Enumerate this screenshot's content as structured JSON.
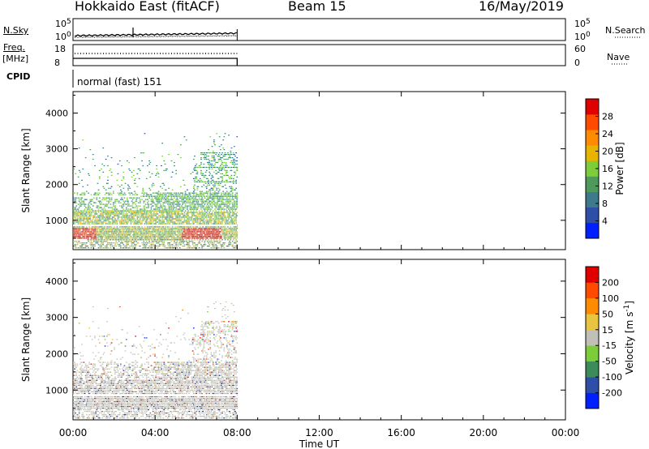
{
  "header": {
    "station": "Hokkaido East (fitACF)",
    "beam": "Beam 15",
    "date": "16/May/2019"
  },
  "strips": {
    "nsky": {
      "label": "N.Sky",
      "left_ticks": [
        "10^5",
        "10^0"
      ],
      "right_ticks": [
        "10^5",
        "10^0"
      ]
    },
    "freq": {
      "label_top": "Freq.",
      "label_bottom": "[MHz]",
      "left_ticks": [
        "18",
        "8"
      ],
      "right_ticks": [
        "60",
        "0"
      ]
    },
    "cpid": {
      "label": "CPID",
      "text": "normal (fast) 151"
    },
    "nsearch_label": "N.Search",
    "nave_label": "Nave"
  },
  "colors": {
    "power": [
      "#0020ff",
      "#2e4fa8",
      "#3c7a8c",
      "#4f9a5a",
      "#7dcc3a",
      "#e8b400",
      "#ff8c00",
      "#ff4a00",
      "#e00000"
    ],
    "velocity": [
      "#e00000",
      "#ff4a00",
      "#ff8c00",
      "#e8c440",
      "#c0c0b8",
      "#7dcc3a",
      "#3c8c5a",
      "#2e4fa8",
      "#0020ff"
    ],
    "grey": "#c0c0b8"
  },
  "chart_data": [
    {
      "type": "heatmap",
      "name": "power",
      "xlabel": "Time UT",
      "ylabel": "Slant Range [km]",
      "xlim": [
        0,
        24
      ],
      "ylim": [
        180,
        4600
      ],
      "ytick_labels": [
        "4000",
        "3000",
        "2000",
        "1000"
      ],
      "ytick_values": [
        4000,
        3000,
        2000,
        1000
      ],
      "colorbar": {
        "label": "Power [dB]",
        "tick_labels": [
          "28",
          "24",
          "20",
          "16",
          "12",
          "8",
          "4"
        ],
        "tick_values": [
          28,
          24,
          20,
          16,
          12,
          8,
          4
        ],
        "range": [
          0,
          32
        ]
      }
    },
    {
      "type": "heatmap",
      "name": "velocity",
      "xlabel": "Time UT",
      "ylabel": "Slant Range [km]",
      "xlim": [
        0,
        24
      ],
      "ylim": [
        180,
        4600
      ],
      "ytick_labels": [
        "4000",
        "3000",
        "2000",
        "1000"
      ],
      "ytick_values": [
        4000,
        3000,
        2000,
        1000
      ],
      "colorbar": {
        "label": "Velocity [m s",
        "label_sup": "-1",
        "label_end": "]",
        "tick_labels": [
          "200",
          "100",
          "50",
          "15",
          "-15",
          "-50",
          "-100",
          "-200"
        ]
      }
    }
  ],
  "time_axis": {
    "label": "Time UT",
    "tick_labels": [
      "00:00",
      "04:00",
      "08:00",
      "12:00",
      "16:00",
      "20:00",
      "00:00"
    ],
    "tick_values": [
      0,
      4,
      8,
      12,
      16,
      20,
      24
    ],
    "data_end_hour": 8.0
  }
}
